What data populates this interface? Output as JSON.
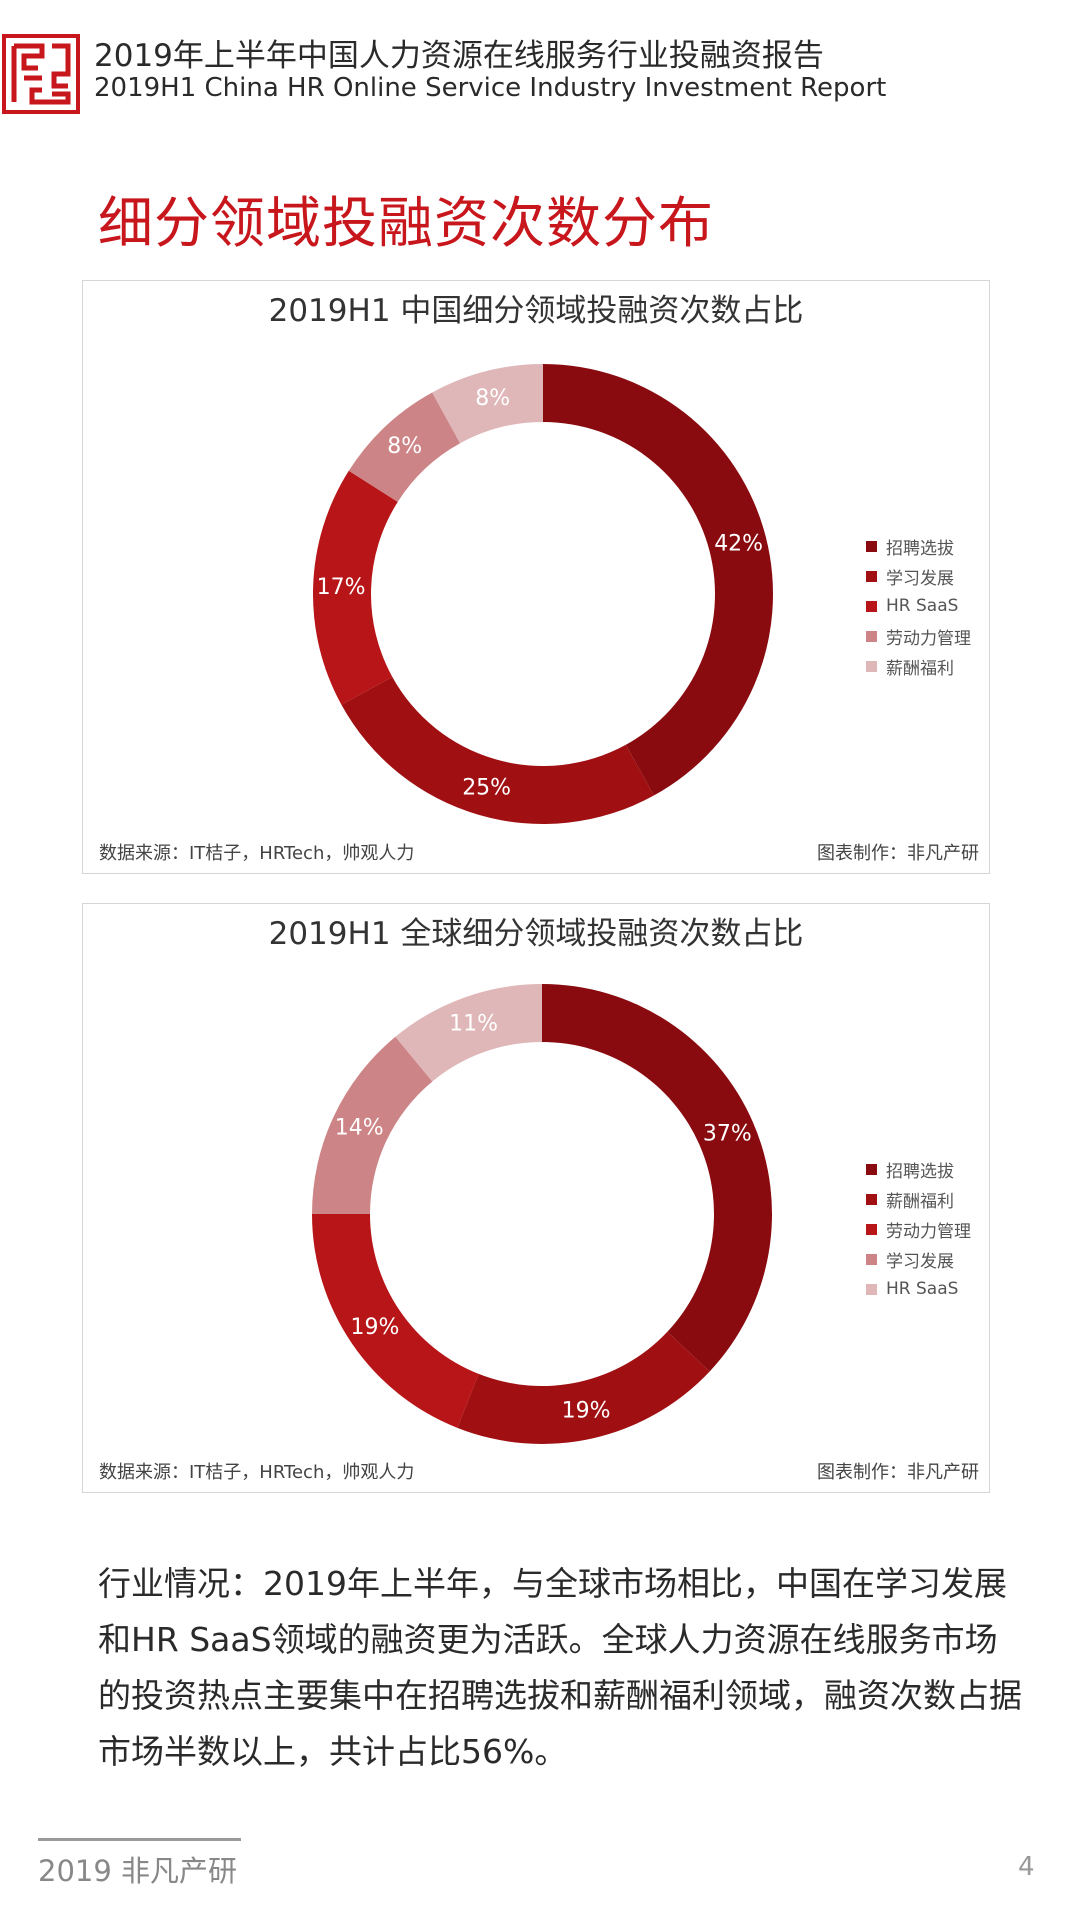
{
  "header": {
    "title_cn": "2019年上半年中国人力资源在线服务行业投融资报告",
    "title_en": "2019H1 China HR Online Service Industry Investment Report"
  },
  "section_title": "细分领域投融资次数分布",
  "colors": {
    "accent": "#c8161d",
    "palette": [
      "#8a0b0f",
      "#a01013",
      "#b81518",
      "#cd8486",
      "#e0b7b8"
    ]
  },
  "chart_data": [
    {
      "type": "pie",
      "variant": "donut",
      "title": "2019H1 中国细分领域投融资次数占比",
      "categories": [
        "招聘选拔",
        "学习发展",
        "HR SaaS",
        "劳动力管理",
        "薪酬福利"
      ],
      "values": [
        42,
        25,
        17,
        8,
        8
      ],
      "labels": [
        "42%",
        "25%",
        "17%",
        "8%",
        "8%"
      ],
      "legend_position": "right",
      "source": "数据来源：IT桔子，HRTech，帅观人力",
      "credit": "图表制作：非凡产研"
    },
    {
      "type": "pie",
      "variant": "donut",
      "title": "2019H1 全球细分领域投融资次数占比",
      "categories": [
        "招聘选拔",
        "薪酬福利",
        "劳动力管理",
        "学习发展",
        "HR SaaS"
      ],
      "values": [
        37,
        19,
        19,
        14,
        11
      ],
      "labels": [
        "37%",
        "19%",
        "19%",
        "14%",
        "11%"
      ],
      "legend_position": "right",
      "source": "数据来源：IT桔子，HRTech，帅观人力",
      "credit": "图表制作：非凡产研"
    }
  ],
  "body_text": "行业情况：2019年上半年，与全球市场相比，中国在学习发展和HR SaaS领域的融资更为活跃。全球人力资源在线服务市场的投资热点主要集中在招聘选拔和薪酬福利领域，融资次数占据市场半数以上，共计占比56%。",
  "footer": {
    "brand": "2019 非凡产研",
    "page": "4"
  }
}
